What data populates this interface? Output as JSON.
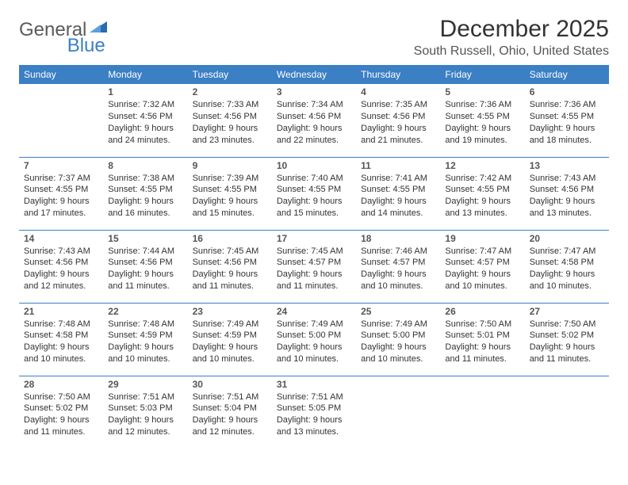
{
  "brand": {
    "part1": "General",
    "part2": "Blue"
  },
  "title": "December 2025",
  "location": "South Russell, Ohio, United States",
  "theme": {
    "header_bg": "#3b7fc4",
    "header_fg": "#ffffff",
    "border": "#3b7fc4",
    "text": "#333333"
  },
  "weekdays": [
    "Sunday",
    "Monday",
    "Tuesday",
    "Wednesday",
    "Thursday",
    "Friday",
    "Saturday"
  ],
  "weeks": [
    [
      null,
      {
        "n": "1",
        "sr": "Sunrise: 7:32 AM",
        "ss": "Sunset: 4:56 PM",
        "dl": "Daylight: 9 hours and 24 minutes."
      },
      {
        "n": "2",
        "sr": "Sunrise: 7:33 AM",
        "ss": "Sunset: 4:56 PM",
        "dl": "Daylight: 9 hours and 23 minutes."
      },
      {
        "n": "3",
        "sr": "Sunrise: 7:34 AM",
        "ss": "Sunset: 4:56 PM",
        "dl": "Daylight: 9 hours and 22 minutes."
      },
      {
        "n": "4",
        "sr": "Sunrise: 7:35 AM",
        "ss": "Sunset: 4:56 PM",
        "dl": "Daylight: 9 hours and 21 minutes."
      },
      {
        "n": "5",
        "sr": "Sunrise: 7:36 AM",
        "ss": "Sunset: 4:55 PM",
        "dl": "Daylight: 9 hours and 19 minutes."
      },
      {
        "n": "6",
        "sr": "Sunrise: 7:36 AM",
        "ss": "Sunset: 4:55 PM",
        "dl": "Daylight: 9 hours and 18 minutes."
      }
    ],
    [
      {
        "n": "7",
        "sr": "Sunrise: 7:37 AM",
        "ss": "Sunset: 4:55 PM",
        "dl": "Daylight: 9 hours and 17 minutes."
      },
      {
        "n": "8",
        "sr": "Sunrise: 7:38 AM",
        "ss": "Sunset: 4:55 PM",
        "dl": "Daylight: 9 hours and 16 minutes."
      },
      {
        "n": "9",
        "sr": "Sunrise: 7:39 AM",
        "ss": "Sunset: 4:55 PM",
        "dl": "Daylight: 9 hours and 15 minutes."
      },
      {
        "n": "10",
        "sr": "Sunrise: 7:40 AM",
        "ss": "Sunset: 4:55 PM",
        "dl": "Daylight: 9 hours and 15 minutes."
      },
      {
        "n": "11",
        "sr": "Sunrise: 7:41 AM",
        "ss": "Sunset: 4:55 PM",
        "dl": "Daylight: 9 hours and 14 minutes."
      },
      {
        "n": "12",
        "sr": "Sunrise: 7:42 AM",
        "ss": "Sunset: 4:55 PM",
        "dl": "Daylight: 9 hours and 13 minutes."
      },
      {
        "n": "13",
        "sr": "Sunrise: 7:43 AM",
        "ss": "Sunset: 4:56 PM",
        "dl": "Daylight: 9 hours and 13 minutes."
      }
    ],
    [
      {
        "n": "14",
        "sr": "Sunrise: 7:43 AM",
        "ss": "Sunset: 4:56 PM",
        "dl": "Daylight: 9 hours and 12 minutes."
      },
      {
        "n": "15",
        "sr": "Sunrise: 7:44 AM",
        "ss": "Sunset: 4:56 PM",
        "dl": "Daylight: 9 hours and 11 minutes."
      },
      {
        "n": "16",
        "sr": "Sunrise: 7:45 AM",
        "ss": "Sunset: 4:56 PM",
        "dl": "Daylight: 9 hours and 11 minutes."
      },
      {
        "n": "17",
        "sr": "Sunrise: 7:45 AM",
        "ss": "Sunset: 4:57 PM",
        "dl": "Daylight: 9 hours and 11 minutes."
      },
      {
        "n": "18",
        "sr": "Sunrise: 7:46 AM",
        "ss": "Sunset: 4:57 PM",
        "dl": "Daylight: 9 hours and 10 minutes."
      },
      {
        "n": "19",
        "sr": "Sunrise: 7:47 AM",
        "ss": "Sunset: 4:57 PM",
        "dl": "Daylight: 9 hours and 10 minutes."
      },
      {
        "n": "20",
        "sr": "Sunrise: 7:47 AM",
        "ss": "Sunset: 4:58 PM",
        "dl": "Daylight: 9 hours and 10 minutes."
      }
    ],
    [
      {
        "n": "21",
        "sr": "Sunrise: 7:48 AM",
        "ss": "Sunset: 4:58 PM",
        "dl": "Daylight: 9 hours and 10 minutes."
      },
      {
        "n": "22",
        "sr": "Sunrise: 7:48 AM",
        "ss": "Sunset: 4:59 PM",
        "dl": "Daylight: 9 hours and 10 minutes."
      },
      {
        "n": "23",
        "sr": "Sunrise: 7:49 AM",
        "ss": "Sunset: 4:59 PM",
        "dl": "Daylight: 9 hours and 10 minutes."
      },
      {
        "n": "24",
        "sr": "Sunrise: 7:49 AM",
        "ss": "Sunset: 5:00 PM",
        "dl": "Daylight: 9 hours and 10 minutes."
      },
      {
        "n": "25",
        "sr": "Sunrise: 7:49 AM",
        "ss": "Sunset: 5:00 PM",
        "dl": "Daylight: 9 hours and 10 minutes."
      },
      {
        "n": "26",
        "sr": "Sunrise: 7:50 AM",
        "ss": "Sunset: 5:01 PM",
        "dl": "Daylight: 9 hours and 11 minutes."
      },
      {
        "n": "27",
        "sr": "Sunrise: 7:50 AM",
        "ss": "Sunset: 5:02 PM",
        "dl": "Daylight: 9 hours and 11 minutes."
      }
    ],
    [
      {
        "n": "28",
        "sr": "Sunrise: 7:50 AM",
        "ss": "Sunset: 5:02 PM",
        "dl": "Daylight: 9 hours and 11 minutes."
      },
      {
        "n": "29",
        "sr": "Sunrise: 7:51 AM",
        "ss": "Sunset: 5:03 PM",
        "dl": "Daylight: 9 hours and 12 minutes."
      },
      {
        "n": "30",
        "sr": "Sunrise: 7:51 AM",
        "ss": "Sunset: 5:04 PM",
        "dl": "Daylight: 9 hours and 12 minutes."
      },
      {
        "n": "31",
        "sr": "Sunrise: 7:51 AM",
        "ss": "Sunset: 5:05 PM",
        "dl": "Daylight: 9 hours and 13 minutes."
      },
      null,
      null,
      null
    ]
  ]
}
